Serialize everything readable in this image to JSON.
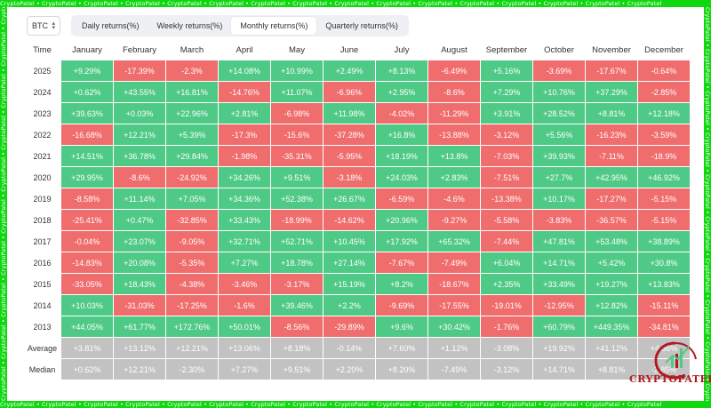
{
  "watermark": "CryptoPatel • CryptoPatel • CryptoPatel • CryptoPatel • CryptoPatel • CryptoPatel • CryptoPatel • CryptoPatel • CryptoPatel • CryptoPatel • CryptoPatel • CryptoPatel • CryptoPatel • CryptoPatel • CryptoPatel • CryptoPatel",
  "asset_selector": {
    "value": "BTC"
  },
  "tabs": [
    {
      "label": "Daily returns(%)"
    },
    {
      "label": "Weekly returns(%)"
    },
    {
      "label": "Monthly returns(%)",
      "active": true
    },
    {
      "label": "Quarterly returns(%)"
    }
  ],
  "table": {
    "time_header": "Time",
    "months": [
      "January",
      "February",
      "March",
      "April",
      "May",
      "June",
      "July",
      "August",
      "September",
      "October",
      "November",
      "December"
    ],
    "rows": [
      {
        "label": "2025",
        "cells": [
          "+9.29%",
          "-17.39%",
          "-2.3%",
          "+14.08%",
          "+10.99%",
          "+2.49%",
          "+8.13%",
          "-6.49%",
          "+5.16%",
          "-3.69%",
          "-17.67%",
          "-0.64%"
        ]
      },
      {
        "label": "2024",
        "cells": [
          "+0.62%",
          "+43.55%",
          "+16.81%",
          "-14.76%",
          "+11.07%",
          "-6.96%",
          "+2.95%",
          "-8.6%",
          "+7.29%",
          "+10.76%",
          "+37.29%",
          "-2.85%"
        ]
      },
      {
        "label": "2023",
        "cells": [
          "+39.63%",
          "+0.03%",
          "+22.96%",
          "+2.81%",
          "-6.98%",
          "+11.98%",
          "-4.02%",
          "-11.29%",
          "+3.91%",
          "+28.52%",
          "+8.81%",
          "+12.18%"
        ]
      },
      {
        "label": "2022",
        "cells": [
          "-16.68%",
          "+12.21%",
          "+5.39%",
          "-17.3%",
          "-15.6%",
          "-37.28%",
          "+16.8%",
          "-13.88%",
          "-3.12%",
          "+5.56%",
          "-16.23%",
          "-3.59%"
        ]
      },
      {
        "label": "2021",
        "cells": [
          "+14.51%",
          "+36.78%",
          "+29.84%",
          "-1.98%",
          "-35.31%",
          "-5.95%",
          "+18.19%",
          "+13.8%",
          "-7.03%",
          "+39.93%",
          "-7.11%",
          "-18.9%"
        ]
      },
      {
        "label": "2020",
        "cells": [
          "+29.95%",
          "-8.6%",
          "-24.92%",
          "+34.26%",
          "+9.51%",
          "-3.18%",
          "+24.03%",
          "+2.83%",
          "-7.51%",
          "+27.7%",
          "+42.95%",
          "+46.92%"
        ]
      },
      {
        "label": "2019",
        "cells": [
          "-8.58%",
          "+11.14%",
          "+7.05%",
          "+34.36%",
          "+52.38%",
          "+26.67%",
          "-6.59%",
          "-4.6%",
          "-13.38%",
          "+10.17%",
          "-17.27%",
          "-5.15%"
        ]
      },
      {
        "label": "2018",
        "cells": [
          "-25.41%",
          "+0.47%",
          "-32.85%",
          "+33.43%",
          "-18.99%",
          "-14.62%",
          "+20.96%",
          "-9.27%",
          "-5.58%",
          "-3.83%",
          "-36.57%",
          "-5.15%"
        ]
      },
      {
        "label": "2017",
        "cells": [
          "-0.04%",
          "+23.07%",
          "-9.05%",
          "+32.71%",
          "+52.71%",
          "+10.45%",
          "+17.92%",
          "+65.32%",
          "-7.44%",
          "+47.81%",
          "+53.48%",
          "+38.89%"
        ]
      },
      {
        "label": "2016",
        "cells": [
          "-14.83%",
          "+20.08%",
          "-5.35%",
          "+7.27%",
          "+18.78%",
          "+27.14%",
          "-7.67%",
          "-7.49%",
          "+6.04%",
          "+14.71%",
          "+5.42%",
          "+30.8%"
        ]
      },
      {
        "label": "2015",
        "cells": [
          "-33.05%",
          "+18.43%",
          "-4.38%",
          "-3.46%",
          "-3.17%",
          "+15.19%",
          "+8.2%",
          "-18.67%",
          "+2.35%",
          "+33.49%",
          "+19.27%",
          "+13.83%"
        ]
      },
      {
        "label": "2014",
        "cells": [
          "+10.03%",
          "-31.03%",
          "-17.25%",
          "-1.6%",
          "+39.46%",
          "+2.2%",
          "-9.69%",
          "-17.55%",
          "-19.01%",
          "-12.95%",
          "+12.82%",
          "-15.11%"
        ]
      },
      {
        "label": "2013",
        "cells": [
          "+44.05%",
          "+61.77%",
          "+172.76%",
          "+50.01%",
          "-8.56%",
          "-29.89%",
          "+9.6%",
          "+30.42%",
          "-1.76%",
          "+60.79%",
          "+449.35%",
          "-34.81%"
        ]
      },
      {
        "label": "Average",
        "cells": [
          "+3.81%",
          "+13.12%",
          "+12.21%",
          "+13.06%",
          "+8.18%",
          "-0.14%",
          "+7.60%",
          "+1.12%",
          "-3.08%",
          "+19.92%",
          "+41.12%",
          "+4.36%"
        ]
      },
      {
        "label": "Median",
        "cells": [
          "+0.62%",
          "+12.21%",
          "-2.30%",
          "+7.27%",
          "+9.51%",
          "+2.20%",
          "+8.20%",
          "-7.49%",
          "-3.12%",
          "+14.71%",
          "+8.81%",
          "-2.85%"
        ]
      }
    ]
  },
  "logo": {
    "text": "CRYPTOPATEL"
  },
  "colors": {
    "positive": "#4fc986",
    "negative": "#f06d6d",
    "summary": "#c2c2c2",
    "frame": "#0fd80f",
    "logo": "#b01b22"
  }
}
